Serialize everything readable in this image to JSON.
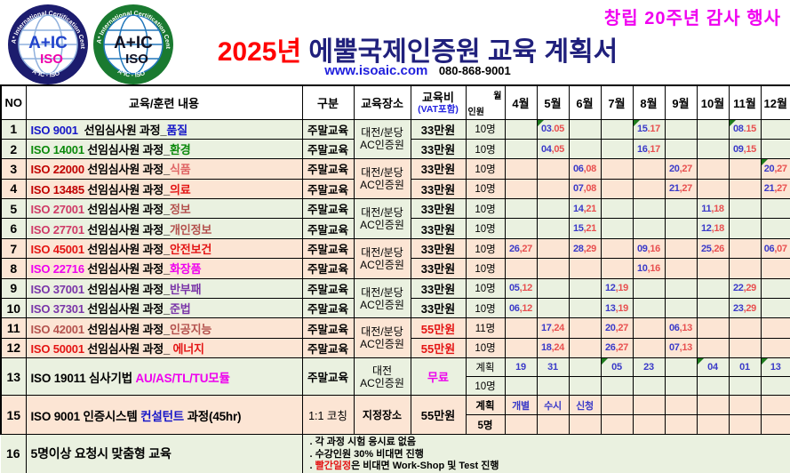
{
  "header": {
    "anniversary": "창립 20주년 감사 행사",
    "title_year": "2025년",
    "title_rest": " 에뿔국제인증원 교육 계획서",
    "website": "www.isoaic.com",
    "phone": "080-868-9001",
    "logos": {
      "ring_top": "A* International Certification Center",
      "ring_bottom": "A*IC - ISO",
      "center": "A+IC",
      "sub": "ISO"
    }
  },
  "colors": {
    "black": "#000000",
    "blue": "#1616c8",
    "green": "#0c8a0c",
    "red": "#e41414",
    "darkred": "#c00000",
    "salmon": "#e06666",
    "crimson": "#cf3a66",
    "brownred": "#b4524e",
    "magenta": "#ee00ee",
    "purple": "#7a35a8",
    "anniv_magenta": "#f000f0",
    "title_red": "#ff0000",
    "title_navy": "#20207c",
    "link_blue": "#2121dd",
    "vat_blue": "#2222e0"
  },
  "table": {
    "header": {
      "no": "NO",
      "content": "교육/훈련 내용",
      "gubun": "구분",
      "place": "교육장소",
      "fee": "교육비",
      "fee_sub": "(VAT포함)",
      "diag_top": "월",
      "diag_bottom": "인원",
      "months": [
        "4월",
        "5월",
        "6월",
        "7월",
        "8월",
        "9월",
        "10월",
        "11월",
        "12월"
      ]
    },
    "pairs": [
      {
        "bg": "green",
        "place": [
          "대전/분당",
          "AC인증원"
        ],
        "rows": [
          {
            "no": "1",
            "parts": [
              [
                "ISO 9001  ",
                "blue"
              ],
              [
                "선임심사원 과정_",
                "black"
              ],
              [
                "품질",
                "blue"
              ]
            ],
            "gubun": "주말교육",
            "fee": "33만원",
            "fee_color": "black",
            "count": "10명",
            "months": {
              "5": "03.05",
              "8": "15.17",
              "11": "08.15"
            },
            "tri": [
              5,
              8,
              11
            ]
          },
          {
            "no": "2",
            "parts": [
              [
                "ISO 14001 ",
                "green"
              ],
              [
                "선임심사원 과정_",
                "black"
              ],
              [
                "환경",
                "green"
              ]
            ],
            "gubun": "주말교육",
            "fee": "33만원",
            "fee_color": "black",
            "count": "10명",
            "months": {
              "5": "04,05",
              "8": "16,17",
              "11": "09,15"
            },
            "tri": []
          }
        ]
      },
      {
        "bg": "peach",
        "place": [
          "대전/분당",
          "AC인증원"
        ],
        "rows": [
          {
            "no": "3",
            "parts": [
              [
                "ISO 22000 ",
                "darkred"
              ],
              [
                "선임심사원 과정_",
                "black"
              ],
              [
                "식품",
                "salmon"
              ]
            ],
            "gubun": "주말교육",
            "fee": "33만원",
            "fee_color": "black",
            "count": "10명",
            "months": {
              "6": "06,08",
              "9": "20,27",
              "12": "20,27"
            },
            "tri": [
              12
            ]
          },
          {
            "no": "4",
            "parts": [
              [
                "ISO 13485 ",
                "darkred"
              ],
              [
                "선임심사원 과정_",
                "black"
              ],
              [
                "의료",
                "red"
              ]
            ],
            "gubun": "주말교육",
            "fee": "33만원",
            "fee_color": "black",
            "count": "10명",
            "months": {
              "6": "07,08",
              "9": "21,27",
              "12": "21,27"
            },
            "tri": []
          }
        ]
      },
      {
        "bg": "green",
        "place": [
          "대전/분당",
          "AC인증원"
        ],
        "rows": [
          {
            "no": "5",
            "parts": [
              [
                "ISO 27001 ",
                "crimson"
              ],
              [
                "선임심사원 과정_",
                "black"
              ],
              [
                "정보",
                "brownred"
              ]
            ],
            "gubun": "주말교육",
            "fee": "33만원",
            "fee_color": "black",
            "count": "10명",
            "months": {
              "6": "14,21",
              "10": "11,18"
            },
            "tri": []
          },
          {
            "no": "6",
            "parts": [
              [
                "ISO 27701 ",
                "crimson"
              ],
              [
                "선임심사원 과정_",
                "black"
              ],
              [
                "개인정보",
                "brownred"
              ]
            ],
            "gubun": "주말교육",
            "fee": "33만원",
            "fee_color": "black",
            "count": "10명",
            "months": {
              "6": "15,21",
              "10": "12,18"
            },
            "tri": []
          }
        ]
      },
      {
        "bg": "peach",
        "place": [
          "대전/분당",
          "AC인증원"
        ],
        "rows": [
          {
            "no": "7",
            "parts": [
              [
                "ISO 45001 ",
                "red"
              ],
              [
                "선임심사원 과정_",
                "black"
              ],
              [
                "안전보건",
                "red"
              ]
            ],
            "gubun": "주말교육",
            "fee": "33만원",
            "fee_color": "black",
            "count": "10명",
            "months": {
              "4": "26,27",
              "6": "28,29",
              "8": "09,16",
              "10": "25,26",
              "12": "06,07"
            },
            "tri": []
          },
          {
            "no": "8",
            "parts": [
              [
                "ISO 22716 ",
                "magenta"
              ],
              [
                "선임심사원 과정_",
                "black"
              ],
              [
                "화장품",
                "magenta"
              ]
            ],
            "gubun": "주말교육",
            "fee": "33만원",
            "fee_color": "black",
            "count": "10명",
            "months": {
              "8": "10,16"
            },
            "tri": []
          }
        ]
      },
      {
        "bg": "green",
        "place": [
          "대전/분당",
          "AC인증원"
        ],
        "rows": [
          {
            "no": "9",
            "parts": [
              [
                "ISO 37001 ",
                "purple"
              ],
              [
                "선임심사원 과정_",
                "black"
              ],
              [
                "반부패",
                "purple"
              ]
            ],
            "gubun": "주말교육",
            "fee": "33만원",
            "fee_color": "black",
            "count": "10명",
            "months": {
              "4": "05,12",
              "7": "12,19",
              "11": "22,29"
            },
            "tri": []
          },
          {
            "no": "10",
            "parts": [
              [
                "ISO 37301 ",
                "purple"
              ],
              [
                "선임심사원 과정_",
                "black"
              ],
              [
                "준법",
                "purple"
              ]
            ],
            "gubun": "주말교육",
            "fee": "33만원",
            "fee_color": "black",
            "count": "10명",
            "months": {
              "4": "06,12",
              "7": "13,19",
              "11": "23,29"
            },
            "tri": []
          }
        ]
      },
      {
        "bg": "peach",
        "place": [
          "대전/분당",
          "AC인증원"
        ],
        "rows": [
          {
            "no": "11",
            "parts": [
              [
                "ISO 42001 ",
                "brownred"
              ],
              [
                "선임심사원 과정_",
                "black"
              ],
              [
                "인공지능",
                "brownred"
              ]
            ],
            "gubun": "주말교육",
            "fee": "55만원",
            "fee_color": "red",
            "count": "11명",
            "months": {
              "5": "17,24",
              "7": "20,27",
              "9": "06,13"
            },
            "tri": []
          },
          {
            "no": "12",
            "parts": [
              [
                "ISO 50001 ",
                "red"
              ],
              [
                "선임심사원 과정_ ",
                "black"
              ],
              [
                "에너지",
                "red"
              ]
            ],
            "gubun": "주말교육",
            "fee": "55만원",
            "fee_color": "red",
            "count": "10명",
            "months": {
              "5": "18,24",
              "7": "26,27",
              "9": "07,13"
            },
            "tri": []
          }
        ]
      }
    ],
    "special": [
      {
        "no": "13",
        "bg": "green",
        "parts": [
          [
            "ISO 19011 심사기법 ",
            "black"
          ],
          [
            "AU/AS/TL/TU모듈",
            "magenta"
          ]
        ],
        "gubun": "주말교육",
        "place": [
          "대전",
          "AC인증원"
        ],
        "fee": "무료",
        "fee_color": "magenta",
        "sub_labels": [
          "계획",
          "10명"
        ],
        "bold_labels": false,
        "months": {
          "4": "19",
          "5": "31",
          "7": "05",
          "8": "23",
          "10": "04",
          "11": "01",
          "12": "13"
        },
        "tri": [
          7,
          10,
          12
        ]
      },
      {
        "no": "15",
        "bg": "peach",
        "parts": [
          [
            "ISO 9001 인증시스템 ",
            "black"
          ],
          [
            "컨설턴트",
            "blue"
          ],
          [
            " 과정(45hr)",
            "black"
          ]
        ],
        "gubun": "1:1 코칭",
        "place": [
          "지정장소"
        ],
        "fee": "55만원",
        "fee_color": "black",
        "sub_labels": [
          "계획",
          "5명"
        ],
        "bold_labels": true,
        "months": {
          "4": "개별",
          "5": "수시",
          "6": "신청"
        },
        "tri": []
      }
    ],
    "row16": {
      "no": "16",
      "bg": "green",
      "parts": [
        [
          "5명이상 요청시 맞춤형 교육",
          "black"
        ]
      ],
      "notes": [
        [
          [
            ". 각 과정 시험 응시료 없음",
            "black"
          ]
        ],
        [
          [
            ". 수강인원 30% 비대면 진행",
            "black"
          ]
        ],
        [
          [
            ". ",
            "black"
          ],
          [
            "빨간일정",
            "red"
          ],
          [
            "은 비대면 Work-Shop 및 Test 진행",
            "black"
          ]
        ]
      ]
    }
  }
}
